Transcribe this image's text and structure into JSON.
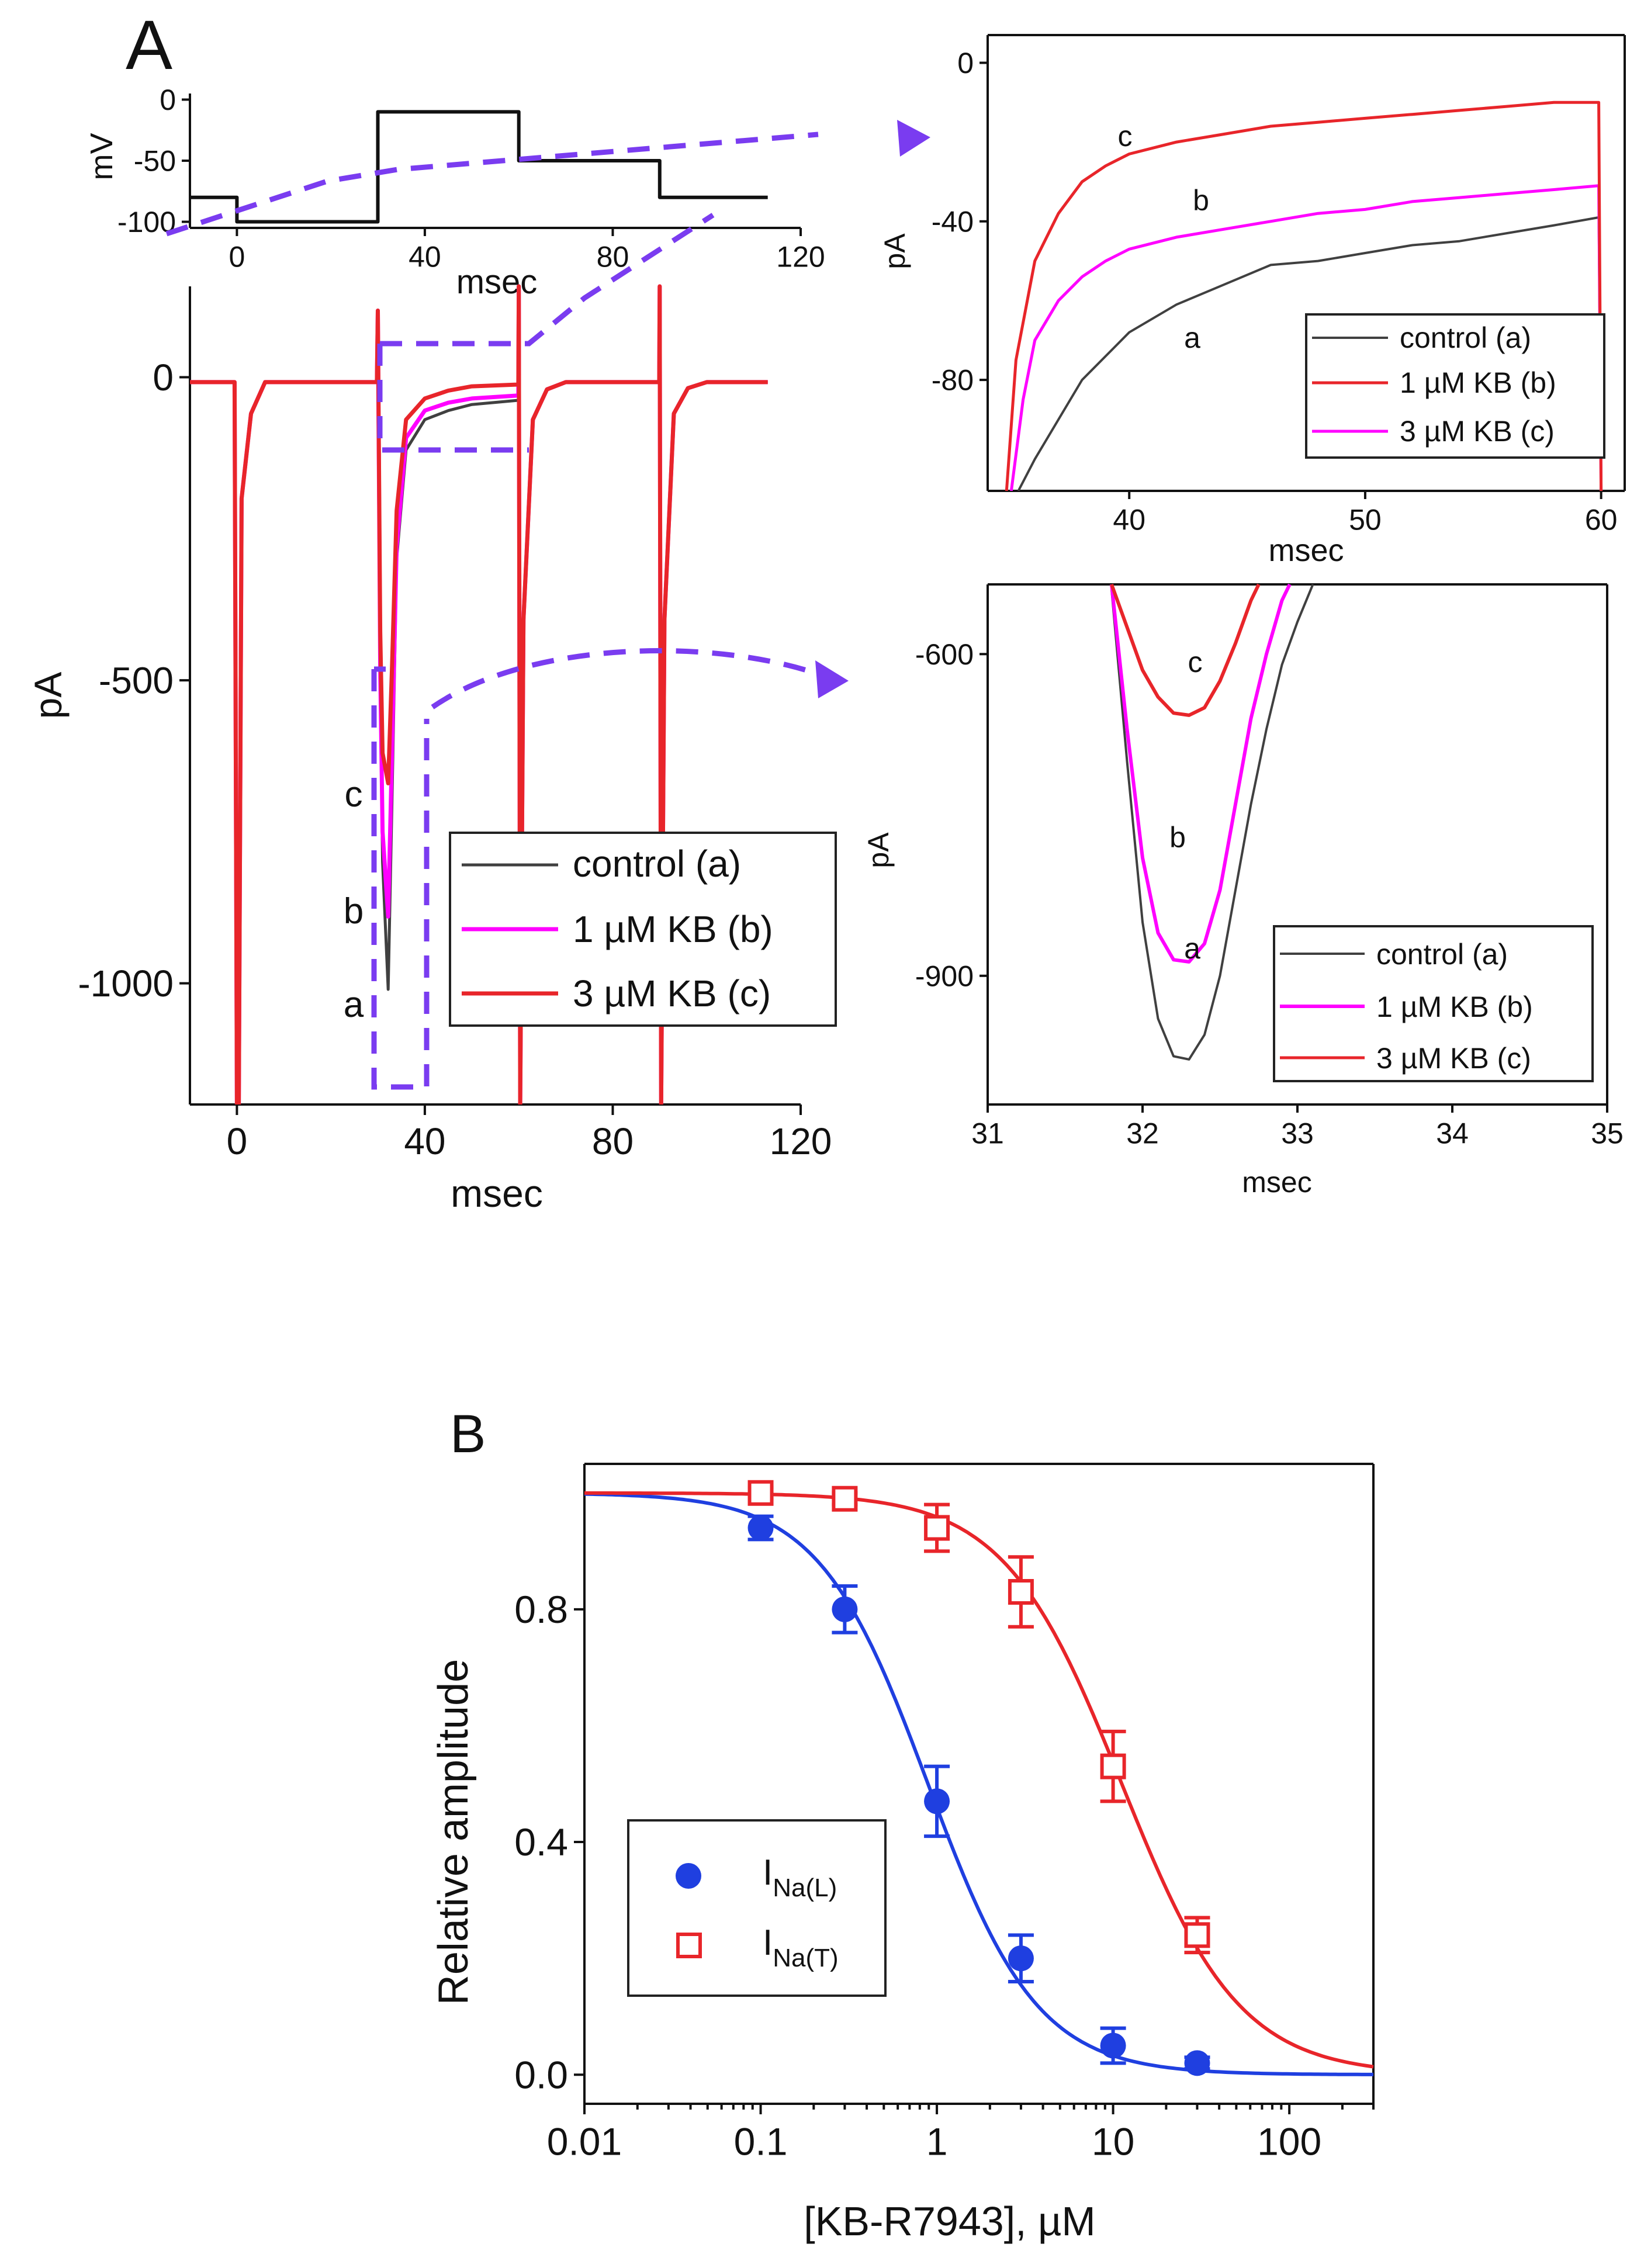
{
  "chart_data": [
    {
      "id": "protocol",
      "type": "line",
      "panel": "A",
      "xlabel": "msec",
      "ylabel": "mV",
      "xlim": [
        -10,
        120
      ],
      "ylim": [
        -105,
        5
      ],
      "xticks": [
        0,
        40,
        80,
        120
      ],
      "yticks": [
        0,
        -50,
        -100
      ],
      "series": [
        {
          "name": "voltage",
          "color": "#111111",
          "x": [
            -10,
            0,
            0,
            30,
            30,
            60,
            60,
            90,
            90,
            113
          ],
          "y": [
            -80,
            -80,
            -100,
            -100,
            -10,
            -10,
            -50,
            -50,
            -80,
            -80
          ]
        }
      ]
    },
    {
      "id": "main",
      "type": "line",
      "panel": "A",
      "xlabel": "msec",
      "ylabel": "pA",
      "xlim": [
        -10,
        120
      ],
      "ylim": [
        -1200,
        150
      ],
      "xticks": [
        0,
        40,
        80,
        120
      ],
      "yticks": [
        0,
        -500,
        -1000
      ],
      "legend": [
        "control (a)",
        "1 µM KB (b)",
        "3 µM KB (c)"
      ],
      "annotations": [
        "c",
        "b",
        "a"
      ],
      "series": [
        {
          "name": "control (a)",
          "color": "#404040",
          "x": [
            -10,
            -0.5,
            0,
            0.4,
            1,
            3,
            6,
            29.8,
            30,
            30.5,
            31,
            32.2,
            33,
            34,
            36,
            40,
            45,
            50,
            59.9,
            60,
            60.3,
            61,
            63,
            66,
            70,
            89.9,
            90,
            90.3,
            91,
            93,
            96,
            100,
            113
          ],
          "y": [
            -8,
            -8,
            -1200,
            -1200,
            -200,
            -60,
            -8,
            -8,
            110,
            -500,
            -800,
            -1010,
            -700,
            -300,
            -120,
            -70,
            -55,
            -45,
            -38,
            150,
            -1200,
            -400,
            -70,
            -20,
            -8,
            -8,
            150,
            -1200,
            -400,
            -60,
            -18,
            -8,
            -8
          ]
        },
        {
          "name": "1 µM KB (b)",
          "color": "#ff00ff",
          "x": [
            -10,
            -0.5,
            0,
            0.4,
            1,
            3,
            6,
            29.8,
            30,
            30.5,
            31,
            32.2,
            33,
            34,
            36,
            40,
            45,
            50,
            59.9,
            60,
            60.3,
            61,
            63,
            66,
            70,
            89.9,
            90,
            90.3,
            91,
            93,
            96,
            100,
            113
          ],
          "y": [
            -8,
            -8,
            -1200,
            -1200,
            -200,
            -60,
            -8,
            -8,
            110,
            -480,
            -750,
            -890,
            -620,
            -280,
            -100,
            -55,
            -42,
            -35,
            -30,
            150,
            -1200,
            -400,
            -70,
            -20,
            -8,
            -8,
            150,
            -1200,
            -400,
            -60,
            -18,
            -8,
            -8
          ]
        },
        {
          "name": "3 µM KB (c)",
          "color": "#e8252a",
          "x": [
            -10,
            -0.5,
            0,
            0.4,
            1,
            3,
            6,
            29.8,
            30,
            30.5,
            31,
            32.2,
            33,
            34,
            36,
            40,
            45,
            50,
            59.9,
            60,
            60.3,
            61,
            63,
            66,
            70,
            89.9,
            90,
            90.3,
            91,
            93,
            96,
            100,
            113
          ],
          "y": [
            -8,
            -8,
            -1200,
            -1200,
            -200,
            -60,
            -8,
            -8,
            110,
            -420,
            -620,
            -670,
            -480,
            -220,
            -70,
            -35,
            -22,
            -15,
            -12,
            150,
            -1200,
            -400,
            -70,
            -20,
            -8,
            -8,
            150,
            -1200,
            -400,
            -60,
            -18,
            -8,
            -8
          ]
        }
      ]
    },
    {
      "id": "inset_late",
      "type": "line",
      "panel": "A",
      "xlabel": "msec",
      "ylabel": "pA",
      "xlim": [
        34,
        61
      ],
      "ylim": [
        -108,
        7
      ],
      "xticks": [
        40,
        50,
        60
      ],
      "yticks": [
        0,
        -40,
        -80
      ],
      "legend": [
        "control (a)",
        "1 µM KB (b)",
        "3 µM KB (c)"
      ],
      "annotations": [
        "c",
        "b",
        "a"
      ],
      "series": [
        {
          "name": "control (a)",
          "color": "#404040",
          "x": [
            35.3,
            36,
            37,
            38,
            39,
            40,
            42,
            44,
            46,
            48,
            50,
            52,
            54,
            56,
            58,
            59.9,
            60
          ],
          "y": [
            -108,
            -100,
            -90,
            -80,
            -74,
            -68,
            -61,
            -56,
            -51,
            -50,
            -48,
            -46,
            -45,
            -43,
            -41,
            -39,
            -108
          ]
        },
        {
          "name": "1 µM KB (b)",
          "color": "#ff00ff",
          "x": [
            35.0,
            35.5,
            36,
            37,
            38,
            39,
            40,
            42,
            44,
            46,
            48,
            50,
            52,
            54,
            56,
            58,
            59.9,
            60
          ],
          "y": [
            -108,
            -85,
            -70,
            -60,
            -54,
            -50,
            -47,
            -44,
            -42,
            -40,
            -38,
            -37,
            -35,
            -34,
            -33,
            -32,
            -31,
            -108
          ]
        },
        {
          "name": "3 µM KB (c)",
          "color": "#e8252a",
          "x": [
            34.8,
            35.2,
            36,
            37,
            38,
            39,
            40,
            42,
            44,
            46,
            48,
            50,
            52,
            54,
            56,
            58,
            59.9,
            60
          ],
          "y": [
            -108,
            -75,
            -50,
            -38,
            -30,
            -26,
            -23,
            -20,
            -18,
            -16,
            -15,
            -14,
            -13,
            -12,
            -11,
            -10,
            -10,
            -108
          ]
        }
      ]
    },
    {
      "id": "inset_peak",
      "type": "line",
      "panel": "A",
      "xlabel": "msec",
      "ylabel": "pA",
      "xlim": [
        31,
        35
      ],
      "ylim": [
        -1020,
        -535
      ],
      "xticks": [
        31,
        32,
        33,
        34,
        35
      ],
      "yticks": [
        -600,
        -900
      ],
      "legend": [
        "control (a)",
        "1 µM KB (b)",
        "3 µM KB (c)"
      ],
      "annotations": [
        "c",
        "b",
        "a"
      ],
      "series": [
        {
          "name": "control (a)",
          "color": "#404040",
          "x": [
            31.8,
            31.9,
            32.0,
            32.1,
            32.2,
            32.3,
            32.4,
            32.5,
            32.6,
            32.7,
            32.8,
            32.9,
            33.0,
            33.1
          ],
          "y": [
            -540,
            -700,
            -850,
            -940,
            -975,
            -978,
            -955,
            -900,
            -820,
            -740,
            -670,
            -610,
            -570,
            -535
          ]
        },
        {
          "name": "1 µM KB (b)",
          "color": "#ff00ff",
          "x": [
            31.8,
            31.9,
            32.0,
            32.1,
            32.2,
            32.3,
            32.4,
            32.5,
            32.6,
            32.7,
            32.8,
            32.9,
            32.95
          ],
          "y": [
            -535,
            -670,
            -790,
            -860,
            -885,
            -887,
            -870,
            -820,
            -740,
            -660,
            -600,
            -550,
            -535
          ]
        },
        {
          "name": "3 µM KB (c)",
          "color": "#e8252a",
          "x": [
            31.8,
            31.9,
            32.0,
            32.1,
            32.2,
            32.3,
            32.4,
            32.5,
            32.6,
            32.7,
            32.75
          ],
          "y": [
            -535,
            -575,
            -615,
            -640,
            -655,
            -657,
            -650,
            -625,
            -590,
            -550,
            -535
          ]
        }
      ]
    },
    {
      "id": "dose_response",
      "type": "scatter",
      "panel": "B",
      "xscale": "log",
      "xlabel": "[KB-R7943], µM",
      "ylabel": "Relative amplitude",
      "xlim": [
        0.01,
        300
      ],
      "ylim": [
        -0.05,
        1.05
      ],
      "xticks": [
        0.01,
        0.1,
        1,
        10,
        100
      ],
      "xtick_labels": [
        "0.01",
        "0.1",
        "1",
        "10",
        "100"
      ],
      "yticks": [
        0.0,
        0.4,
        0.8
      ],
      "ytick_labels": [
        "0.0",
        "0.4",
        "0.8"
      ],
      "legend_position": "bottom-left",
      "series": [
        {
          "name": "I_Na(L)",
          "label_main": "I",
          "label_sub": "Na(L)",
          "color": "#1f3fe0",
          "marker": "filled-circle",
          "x": [
            0.1,
            0.3,
            1,
            3,
            10,
            30
          ],
          "y": [
            0.94,
            0.8,
            0.47,
            0.2,
            0.05,
            0.02
          ],
          "err": [
            0.02,
            0.04,
            0.06,
            0.04,
            0.03,
            0.01
          ],
          "fit": {
            "IC50": 0.89,
            "n": 1.4
          }
        },
        {
          "name": "I_Na(T)",
          "label_main": "I",
          "label_sub": "Na(T)",
          "color": "#e8252a",
          "marker": "open-square",
          "x": [
            0.1,
            0.3,
            1,
            3,
            10,
            30
          ],
          "y": [
            1.0,
            0.99,
            0.94,
            0.83,
            0.53,
            0.24
          ],
          "err": [
            0.01,
            0.01,
            0.04,
            0.06,
            0.06,
            0.03
          ],
          "fit": {
            "IC50": 11.2,
            "n": 1.3
          }
        }
      ]
    }
  ],
  "panel_labels": [
    "A",
    "B"
  ]
}
